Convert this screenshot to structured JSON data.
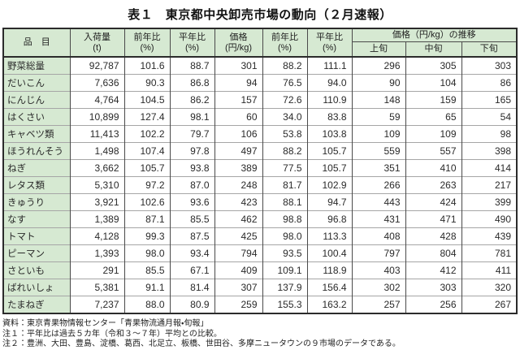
{
  "title": "表１　東京都中央卸売市場の動向（２月速報）",
  "table": {
    "columns": [
      {
        "label": "品　目"
      },
      {
        "label": "入荷量\n(t)"
      },
      {
        "label": "前年比\n(%)"
      },
      {
        "label": "平年比\n(%)"
      },
      {
        "label": "価格\n(円/kg)"
      },
      {
        "label": "前年比\n(%)"
      },
      {
        "label": "平年比\n(%)"
      }
    ],
    "price_trend_group": {
      "label": "価格（円/kg）の推移",
      "sub_columns": [
        "上旬",
        "中旬",
        "下旬"
      ]
    },
    "rows": [
      {
        "item": "野菜総量",
        "values": [
          "92,787",
          "101.6",
          "88.7",
          "301",
          "88.2",
          "111.1",
          "296",
          "305",
          "303"
        ]
      },
      {
        "item": "だいこん",
        "values": [
          "7,636",
          "90.3",
          "86.8",
          "94",
          "76.5",
          "94.0",
          "90",
          "104",
          "86"
        ]
      },
      {
        "item": "にんじん",
        "values": [
          "4,764",
          "104.5",
          "86.2",
          "157",
          "72.6",
          "110.9",
          "148",
          "159",
          "165"
        ]
      },
      {
        "item": "はくさい",
        "values": [
          "10,899",
          "127.4",
          "98.1",
          "60",
          "34.0",
          "83.8",
          "59",
          "65",
          "54"
        ]
      },
      {
        "item": "キャベツ類",
        "values": [
          "11,413",
          "102.2",
          "79.7",
          "106",
          "53.8",
          "103.8",
          "109",
          "109",
          "98"
        ]
      },
      {
        "item": "ほうれんそう",
        "values": [
          "1,498",
          "107.4",
          "97.8",
          "497",
          "88.2",
          "105.7",
          "559",
          "557",
          "398"
        ]
      },
      {
        "item": "ねぎ",
        "values": [
          "3,662",
          "105.7",
          "93.8",
          "389",
          "77.5",
          "105.7",
          "351",
          "410",
          "414"
        ]
      },
      {
        "item": "レタス類",
        "values": [
          "5,310",
          "97.2",
          "87.0",
          "248",
          "81.7",
          "102.9",
          "266",
          "263",
          "217"
        ]
      },
      {
        "item": "きゅうり",
        "values": [
          "3,921",
          "102.6",
          "93.6",
          "423",
          "88.1",
          "94.7",
          "443",
          "424",
          "399"
        ]
      },
      {
        "item": "なす",
        "values": [
          "1,389",
          "87.1",
          "85.5",
          "462",
          "98.8",
          "96.8",
          "431",
          "471",
          "490"
        ]
      },
      {
        "item": "トマト",
        "values": [
          "4,128",
          "99.3",
          "87.5",
          "425",
          "98.0",
          "113.3",
          "408",
          "428",
          "439"
        ]
      },
      {
        "item": "ピーマン",
        "values": [
          "1,393",
          "98.0",
          "93.4",
          "794",
          "93.5",
          "100.4",
          "797",
          "804",
          "781"
        ]
      },
      {
        "item": "さといも",
        "values": [
          "291",
          "85.5",
          "67.1",
          "409",
          "109.1",
          "118.9",
          "403",
          "412",
          "411"
        ]
      },
      {
        "item": "ばれいしょ",
        "values": [
          "5,381",
          "91.1",
          "81.4",
          "307",
          "137.9",
          "156.4",
          "302",
          "303",
          "320"
        ]
      },
      {
        "item": "たまねぎ",
        "values": [
          "7,237",
          "88.0",
          "80.9",
          "259",
          "155.3",
          "163.2",
          "257",
          "256",
          "267"
        ]
      }
    ]
  },
  "notes": [
    "資料：東京青果物情報センター「青果物流通月報・旬報」",
    "注１：平年比は過去５カ年（令和３～７年）平均との比較。",
    "注２：豊洲、大田、豊島、淀橋、葛西、北足立、板橋、世田谷、多摩ニュータウンの９市場のデータである。"
  ],
  "colors": {
    "header_bg": "#d6e9d2",
    "label_bg": "#d6e9d2",
    "border_dark": "#2b2b2b",
    "border_mid": "#4a4a4a",
    "row_line": "#a6a6a6"
  }
}
